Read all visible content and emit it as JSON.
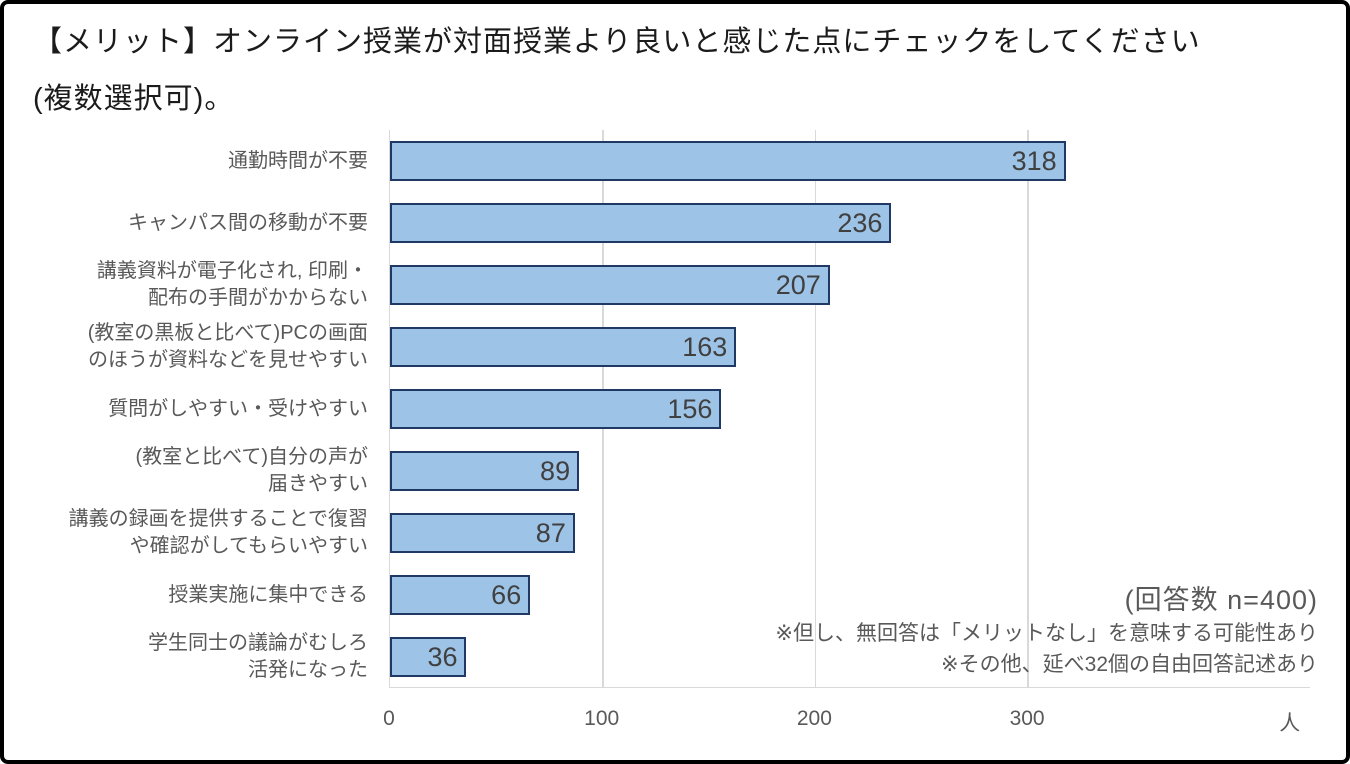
{
  "title": {
    "line1": "【メリット】オンライン授業が対面授業より良いと感じた点にチェックをしてください",
    "line2": "(複数選択可)。"
  },
  "chart_data": {
    "type": "bar",
    "orientation": "horizontal",
    "title": "【メリット】オンライン授業が対面授業より良いと感じた点にチェックをしてください(複数選択可)。",
    "categories": [
      "通勤時間が不要",
      "キャンパス間の移動が不要",
      "講義資料が電子化され, 印刷・\n配布の手間がかからない",
      "(教室の黒板と比べて)PCの画面\nのほうが資料などを見せやすい",
      "質問がしやすい・受けやすい",
      "(教室と比べて)自分の声が\n届きやすい",
      "講義の録画を提供することで復習\nや確認がしてもらいやすい",
      "授業実施に集中できる",
      "学生同士の議論がむしろ\n活発になった"
    ],
    "values": [
      318,
      236,
      207,
      163,
      156,
      89,
      87,
      66,
      36
    ],
    "x_ticks": [
      0,
      100,
      200,
      300
    ],
    "x_unit": "人",
    "xlim": [
      0,
      433
    ],
    "grid": true,
    "legend": false,
    "bar_fill": "#9DC3E6",
    "bar_border": "#1F3864",
    "value_label_color": "#404040"
  },
  "annotations": {
    "respondents": "(回答数 n=400)",
    "note1": "※但し、無回答は「メリットなし」を意味する可能性あり",
    "note2": "※その他、延べ32個の自由回答記述あり"
  }
}
